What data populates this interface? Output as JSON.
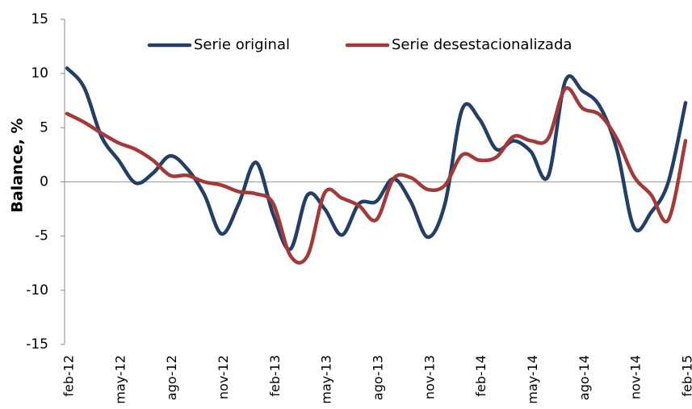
{
  "chart_data": {
    "type": "line",
    "y_label": "Balance, %",
    "categories": [
      "feb-12",
      null,
      null,
      "may-12",
      null,
      null,
      "ago-12",
      null,
      null,
      "nov-12",
      null,
      null,
      "feb-13",
      null,
      null,
      "may-13",
      null,
      null,
      "ago-13",
      null,
      null,
      "nov-13",
      null,
      null,
      "feb-14",
      null,
      null,
      "may-14",
      null,
      null,
      "ago-14",
      null,
      null,
      "nov-14",
      null,
      null,
      "feb-15"
    ],
    "series": [
      {
        "name": "Serie original",
        "color": "#243f66",
        "values": [
          10.5,
          8.7,
          4.2,
          2.0,
          -0.1,
          0.8,
          2.4,
          1.2,
          -1.2,
          -4.8,
          -2.0,
          1.8,
          -3.0,
          -6.2,
          -1.2,
          -2.5,
          -4.9,
          -2.0,
          -1.8,
          0.3,
          -1.8,
          -5.1,
          -2.0,
          6.7,
          5.8,
          3.0,
          3.8,
          2.8,
          0.5,
          9.3,
          8.4,
          7.0,
          3.0,
          -4.2,
          -2.8,
          0.0,
          7.3
        ]
      },
      {
        "name": "Serie desestacionalizada",
        "color": "#a33a3a",
        "values": [
          6.3,
          5.5,
          4.5,
          3.6,
          3.0,
          2.0,
          0.6,
          0.6,
          0.0,
          -0.3,
          -0.9,
          -1.1,
          -2.0,
          -6.8,
          -6.8,
          -1.0,
          -1.5,
          -2.2,
          -3.5,
          0.3,
          0.4,
          -0.7,
          -0.3,
          2.5,
          2.0,
          2.3,
          4.2,
          3.8,
          4.0,
          8.6,
          6.8,
          6.2,
          4.0,
          0.5,
          -1.2,
          -3.5,
          3.8
        ]
      }
    ],
    "ylim": [
      -15,
      15
    ],
    "yticks": [
      -15,
      -10,
      -5,
      0,
      5,
      10,
      15
    ],
    "legend": "top"
  }
}
